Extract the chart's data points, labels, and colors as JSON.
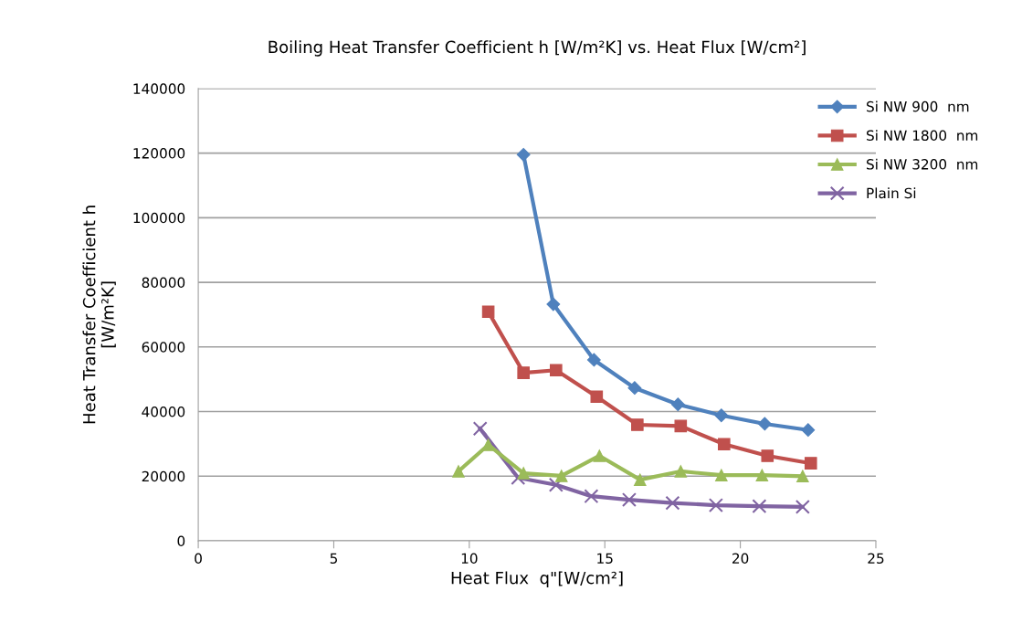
{
  "chart_data": {
    "type": "line",
    "title": "Boiling Heat Transfer Coefficient h [W/m²K] vs. Heat Flux [W/cm²]",
    "xlabel": "Heat Flux  q\"[W/cm²]",
    "ylabel": "Heat Transfer Coefficient h\n[W/m²K]",
    "xlim": [
      0,
      25
    ],
    "xticks": [
      0,
      5,
      10,
      15,
      20,
      25
    ],
    "ylim": [
      0,
      140000
    ],
    "yticks": [
      0,
      20000,
      40000,
      60000,
      80000,
      100000,
      120000,
      140000
    ],
    "grid": "y",
    "legend": "top right",
    "series": [
      {
        "name": "Si NW 900  nm",
        "color": "#4f81bd",
        "marker": "diamond",
        "x": [
          12.0,
          13.1,
          14.6,
          16.1,
          17.7,
          19.3,
          20.9,
          22.5
        ],
        "values": [
          119500,
          73200,
          56000,
          47300,
          42200,
          38800,
          36200,
          34300
        ]
      },
      {
        "name": "Si NW 1800  nm",
        "color": "#c0504d",
        "marker": "square",
        "x": [
          10.7,
          12.0,
          13.2,
          14.7,
          16.2,
          17.8,
          19.4,
          21.0,
          22.6
        ],
        "values": [
          70900,
          52000,
          52800,
          44600,
          35900,
          35500,
          29900,
          26300,
          24000
        ]
      },
      {
        "name": "Si NW 3200  nm",
        "color": "#9bbb59",
        "marker": "triangle",
        "x": [
          9.6,
          10.7,
          12.0,
          13.4,
          14.8,
          16.3,
          17.8,
          19.3,
          20.8,
          22.3
        ],
        "values": [
          21500,
          29700,
          20900,
          20100,
          26300,
          18900,
          21500,
          20300,
          20300,
          20000
        ]
      },
      {
        "name": "Plain Si",
        "color": "#8064a2",
        "marker": "cross",
        "x": [
          10.4,
          11.8,
          13.2,
          14.5,
          15.9,
          17.5,
          19.1,
          20.7,
          22.3
        ],
        "values": [
          34700,
          19500,
          17300,
          13800,
          12700,
          11700,
          11000,
          10700,
          10500
        ]
      }
    ]
  }
}
